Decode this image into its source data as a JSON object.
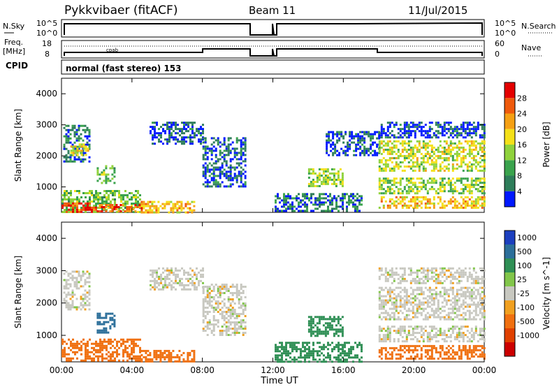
{
  "header": {
    "station": "Pykkvibaer (fitACF)",
    "beam": "Beam 11",
    "date": "11/Jul/2015"
  },
  "noise_panel": {
    "left_label": "N.Sky",
    "left_ticks": [
      "10^5",
      "10^0"
    ],
    "right_ticks": [
      "10^5",
      "10^0"
    ],
    "right_label": "N.Search"
  },
  "freq_panel": {
    "left_label_1": "Freq.",
    "left_label_2": "[MHz]",
    "left_ticks": [
      "18",
      "8"
    ],
    "right_ticks": [
      "60",
      "0"
    ],
    "right_label": "Nave",
    "annotation": "cpab"
  },
  "cpid": {
    "label": "CPID",
    "text": "normal (fast stereo) 153"
  },
  "colors": {
    "power_scale": [
      "#0018ff",
      "#2e7d5a",
      "#3aa34d",
      "#8fd23c",
      "#f4e018",
      "#f5a014",
      "#ef5a0c",
      "#e40000"
    ],
    "velocity_scale": [
      "#1c3fbf",
      "#2c6f9a",
      "#2f8f55",
      "#82c64a",
      "#c8c8c0",
      "#f0a020",
      "#f07010",
      "#e04000",
      "#cc0000"
    ]
  },
  "chart_data": [
    {
      "type": "heatmap",
      "name_label": "Power [dB]",
      "ylabel": "Slant Range [km]",
      "yticks": [
        "1000",
        "2000",
        "3000",
        "4000"
      ],
      "ylim": [
        180,
        4500
      ],
      "xticks": [
        "00:00",
        "04:00",
        "08:00",
        "12:00",
        "16:00",
        "20:00",
        "00:00"
      ],
      "xlim_hours": [
        0,
        24
      ],
      "colorbar_ticks": [
        "4",
        "8",
        "12",
        "16",
        "20",
        "24",
        "28"
      ],
      "colorbar_range": [
        0,
        32
      ],
      "data_gap_hours": [
        10.5,
        12.1
      ],
      "echo_regions": [
        {
          "t0": 0.1,
          "t1": 1.6,
          "r0": 1800,
          "r1": 3000,
          "value": 6
        },
        {
          "t0": 0.5,
          "t1": 1.5,
          "r0": 2000,
          "r1": 2400,
          "value": 18
        },
        {
          "t0": 0.0,
          "t1": 4.5,
          "r0": 200,
          "r1": 900,
          "value": 12
        },
        {
          "t0": 0.0,
          "t1": 2.0,
          "r0": 200,
          "r1": 500,
          "value": 28
        },
        {
          "t0": 2.0,
          "t1": 4.5,
          "r0": 200,
          "r1": 450,
          "value": 26
        },
        {
          "t0": 2.0,
          "t1": 3.0,
          "r0": 1100,
          "r1": 1700,
          "value": 12
        },
        {
          "t0": 4.5,
          "t1": 7.5,
          "r0": 200,
          "r1": 550,
          "value": 20
        },
        {
          "t0": 5.0,
          "t1": 8.0,
          "r0": 2400,
          "r1": 3100,
          "value": 4
        },
        {
          "t0": 8.0,
          "t1": 10.5,
          "r0": 1000,
          "r1": 2600,
          "value": 4
        },
        {
          "t0": 12.1,
          "t1": 17.0,
          "r0": 200,
          "r1": 800,
          "value": 6
        },
        {
          "t0": 14.0,
          "t1": 16.0,
          "r0": 1000,
          "r1": 1600,
          "value": 14
        },
        {
          "t0": 15.0,
          "t1": 18.0,
          "r0": 2000,
          "r1": 2800,
          "value": 4
        },
        {
          "t0": 18.0,
          "t1": 24.0,
          "r0": 1500,
          "r1": 2500,
          "value": 16
        },
        {
          "t0": 18.0,
          "t1": 24.0,
          "r0": 800,
          "r1": 1300,
          "value": 14
        },
        {
          "t0": 18.0,
          "t1": 24.0,
          "r0": 300,
          "r1": 700,
          "value": 20
        },
        {
          "t0": 18.0,
          "t1": 24.0,
          "r0": 2600,
          "r1": 3100,
          "value": 4
        }
      ]
    },
    {
      "type": "heatmap",
      "name_label": "Velocity [m s^-1]",
      "ylabel": "Slant Range [km]",
      "yticks": [
        "1000",
        "2000",
        "3000",
        "4000"
      ],
      "ylim": [
        180,
        4500
      ],
      "xticks": [
        "00:00",
        "04:00",
        "08:00",
        "12:00",
        "16:00",
        "20:00",
        "00:00"
      ],
      "xlabel": "Time UT",
      "xlim_hours": [
        0,
        24
      ],
      "colorbar_ticks": [
        "1000",
        "500",
        "100",
        "25",
        "-25",
        "-100",
        "-500",
        "-1000"
      ],
      "data_gap_hours": [
        10.5,
        12.1
      ],
      "echo_regions": [
        {
          "t0": 0.1,
          "t1": 1.6,
          "r0": 1800,
          "r1": 3000,
          "value": 0
        },
        {
          "t0": 2.0,
          "t1": 3.0,
          "r0": 1100,
          "r1": 1700,
          "value": 800
        },
        {
          "t0": 0.0,
          "t1": 4.5,
          "r0": 200,
          "r1": 900,
          "value": -400
        },
        {
          "t0": 4.5,
          "t1": 7.5,
          "r0": 200,
          "r1": 550,
          "value": -200
        },
        {
          "t0": 5.0,
          "t1": 8.0,
          "r0": 2400,
          "r1": 3100,
          "value": 0
        },
        {
          "t0": 8.0,
          "t1": 10.5,
          "r0": 1000,
          "r1": 2600,
          "value": 0
        },
        {
          "t0": 12.1,
          "t1": 17.0,
          "r0": 200,
          "r1": 800,
          "value": 200
        },
        {
          "t0": 14.0,
          "t1": 16.0,
          "r0": 1000,
          "r1": 1600,
          "value": 300
        },
        {
          "t0": 18.0,
          "t1": 24.0,
          "r0": 1500,
          "r1": 2500,
          "value": 0
        },
        {
          "t0": 18.0,
          "t1": 24.0,
          "r0": 800,
          "r1": 1300,
          "value": 0
        },
        {
          "t0": 18.0,
          "t1": 24.0,
          "r0": 300,
          "r1": 700,
          "value": -300
        },
        {
          "t0": 18.0,
          "t1": 24.0,
          "r0": 2600,
          "r1": 3100,
          "value": 0
        }
      ]
    }
  ]
}
